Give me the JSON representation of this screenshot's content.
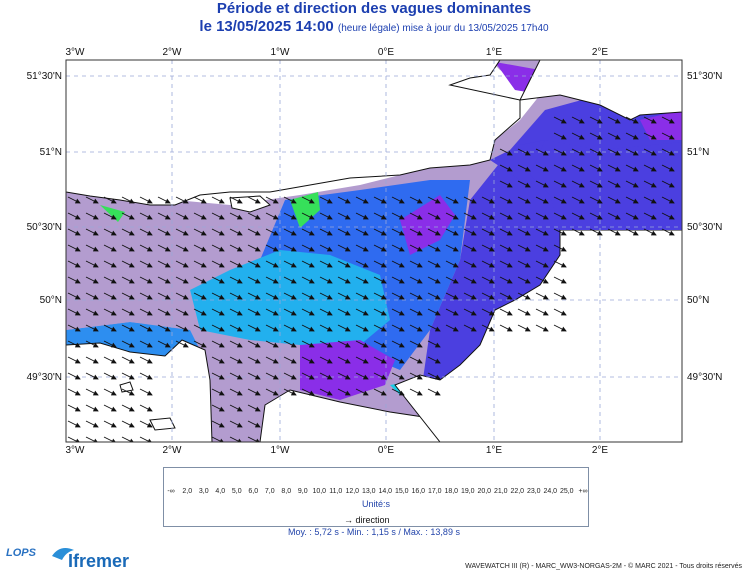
{
  "header": {
    "title": "Période et direction des vagues dominantes",
    "date_line": "le 13/05/2025 14:00",
    "update_note": "(heure légale) mise à jour du 13/05/2025 17h40"
  },
  "map": {
    "longitude_labels": [
      "3°W",
      "2°W",
      "1°W",
      "0°E",
      "1°E",
      "2°E"
    ],
    "latitude_labels": [
      "51°30'N",
      "51°N",
      "50°30'N",
      "50°N",
      "49°30'N"
    ],
    "grid": "dashed",
    "colors": {
      "land": "#ffffff",
      "coast": "#111111",
      "grid": "#9aa7d8"
    },
    "wave_direction": "arrows toward east-south-east"
  },
  "legend": {
    "scale_labels": [
      "-∞",
      "2,0",
      "3,0",
      "4,0",
      "5,0",
      "6,0",
      "7,0",
      "8,0",
      "9,0",
      "10,0",
      "11,0",
      "12,0",
      "13,0",
      "14,0",
      "15,0",
      "16,0",
      "17,0",
      "18,0",
      "19,0",
      "20,0",
      "21,0",
      "22,0",
      "23,0",
      "24,0",
      "25,0",
      "+∞"
    ],
    "scale_colors": [
      "#b9a7cf",
      "#9a86bd",
      "#7a3ee8",
      "#5b2ee8",
      "#3e4ae6",
      "#2f6bf0",
      "#2d8ef0",
      "#21aef0",
      "#19cce6",
      "#18d9c4",
      "#1ee08a",
      "#36e05a",
      "#7ce030",
      "#b8e61e",
      "#e6ea18",
      "#f0d015",
      "#f2b414",
      "#f29812",
      "#ef7a10",
      "#ec5c0e",
      "#e9420c",
      "#e4280a",
      "#de1408",
      "#d60606"
    ],
    "unit": "Unité:s",
    "direction_label": "direction"
  },
  "stats": "Moy. : 5,72 s   -   Min. : 1,15 s / Max. : 13,89 s",
  "logos": {
    "lops": "LOPS",
    "ifremer": "Ifremer"
  },
  "credit": "WAVEWATCH III (R) - MARC_WW3-NORGAS-2M - © MARC 2021 - Tous droits réservés"
}
